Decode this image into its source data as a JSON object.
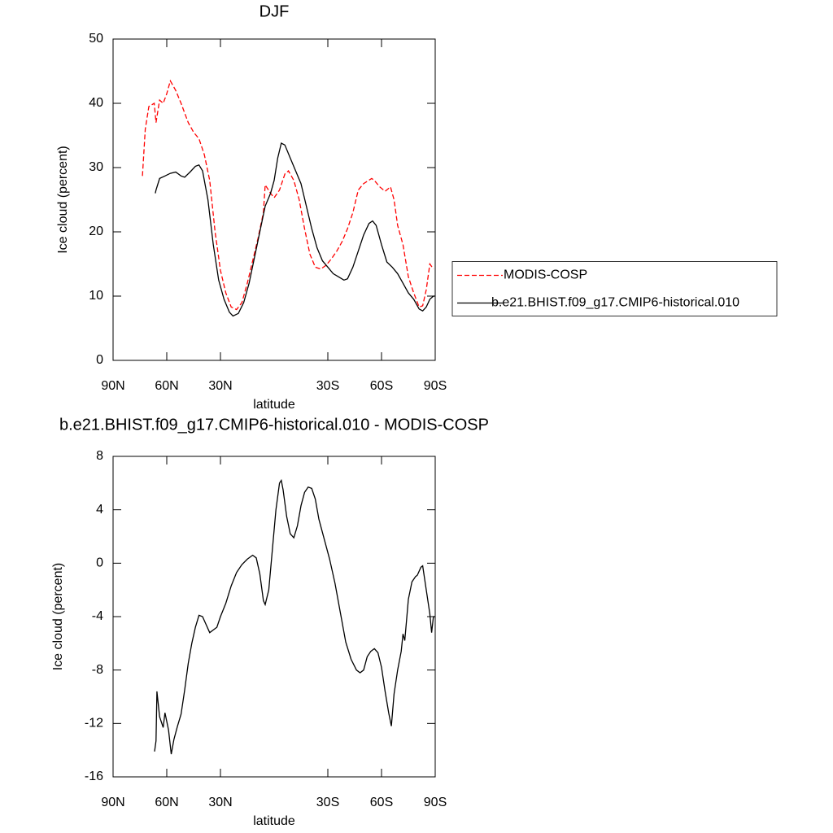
{
  "chart_data": [
    {
      "type": "line",
      "title": "DJF",
      "xlabel": "latitude",
      "ylabel": "Ice cloud (percent)",
      "xlim": [
        90,
        -90
      ],
      "ylim": [
        0,
        50
      ],
      "xticks": [
        {
          "value": 90,
          "label": "90N"
        },
        {
          "value": 60,
          "label": "60N"
        },
        {
          "value": 30,
          "label": "30N"
        },
        {
          "value": -30,
          "label": "30S"
        },
        {
          "value": -60,
          "label": "60S"
        },
        {
          "value": -90,
          "label": "90S"
        }
      ],
      "yticks": [
        0,
        10,
        20,
        30,
        40,
        50
      ],
      "legend": "right",
      "series": [
        {
          "name": "MODIS-COSP",
          "color": "#ff0000",
          "dash": true,
          "x": [
            73.6,
            72,
            70,
            67,
            66,
            64,
            62,
            60,
            58,
            55,
            52,
            48,
            45,
            42,
            39,
            36,
            33,
            30,
            27,
            24,
            21,
            18,
            15,
            12,
            9,
            6,
            5,
            2,
            0,
            -3,
            -6,
            -8,
            -11,
            -14,
            -17,
            -20,
            -23,
            -26,
            -29,
            -32,
            -35,
            -38,
            -41,
            -44,
            -47,
            -50,
            -54.5,
            -56,
            -59,
            -62,
            -65,
            -67,
            -69,
            -72,
            -75,
            -78,
            -81,
            -83,
            -85,
            -87,
            -89
          ],
          "values": [
            28.7,
            36,
            39.5,
            40,
            37,
            40.5,
            40,
            41.5,
            43.5,
            42,
            40,
            37,
            35.5,
            34.5,
            32,
            28,
            20,
            14,
            10.5,
            8.3,
            7.9,
            9,
            12,
            15.5,
            19,
            23,
            27.3,
            26,
            25.3,
            26.5,
            29,
            29.5,
            28,
            25,
            20.5,
            16.5,
            14.5,
            14.2,
            14.8,
            15.8,
            17,
            18.5,
            20.5,
            23,
            26.5,
            27.5,
            28.3,
            28,
            27,
            26.3,
            27,
            25,
            21,
            18,
            13,
            10.5,
            8.3,
            8.5,
            11,
            15,
            14.2
          ]
        },
        {
          "name": "b.e21.BHIST.f09_g17.CMIP6-historical.010",
          "color": "#000000",
          "dash": false,
          "x": [
            66.4,
            66,
            64,
            61,
            58,
            55,
            52,
            50,
            47,
            44,
            42,
            40,
            37,
            34,
            31,
            28,
            25,
            23,
            20,
            17,
            14,
            11,
            8,
            5,
            2,
            0,
            -2,
            -4,
            -6,
            -9,
            -12,
            -15,
            -18,
            -21,
            -24,
            -27,
            -30,
            -33,
            -36,
            -39,
            -41,
            -44,
            -47,
            -50,
            -53,
            -55,
            -57,
            -60,
            -63,
            -66,
            -69,
            -72,
            -75,
            -78,
            -81,
            -83,
            -85,
            -87,
            -89,
            -90
          ],
          "values": [
            26,
            26.5,
            28.3,
            28.7,
            29.1,
            29.3,
            28.7,
            28.5,
            29.3,
            30.2,
            30.4,
            29.5,
            25,
            18,
            12.5,
            9.5,
            7.5,
            6.9,
            7.3,
            9,
            12,
            16,
            20,
            24,
            26,
            28,
            31.5,
            33.8,
            33.5,
            31.5,
            29.5,
            27.5,
            24,
            20.5,
            17.5,
            15.5,
            14.5,
            13.5,
            13,
            12.5,
            12.7,
            14.5,
            17,
            19.5,
            21.3,
            21.7,
            21,
            18,
            15.3,
            14.5,
            13.5,
            12,
            10.5,
            9.5,
            8,
            7.7,
            8.3,
            9.5,
            10,
            10
          ]
        }
      ]
    },
    {
      "type": "line",
      "title": "b.e21.BHIST.f09_g17.CMIP6-historical.010 - MODIS-COSP",
      "xlabel": "latitude",
      "ylabel": "Ice cloud (percent)",
      "xlim": [
        90,
        -90
      ],
      "ylim": [
        -16,
        8
      ],
      "xticks": [
        {
          "value": 90,
          "label": "90N"
        },
        {
          "value": 60,
          "label": "60N"
        },
        {
          "value": 30,
          "label": "30N"
        },
        {
          "value": -30,
          "label": "30S"
        },
        {
          "value": -60,
          "label": "60S"
        },
        {
          "value": -90,
          "label": "90S"
        }
      ],
      "yticks": [
        -16,
        -12,
        -8,
        -4,
        0,
        4,
        8
      ],
      "series": [
        {
          "color": "#000000",
          "dash": false,
          "x": [
            66.8,
            66,
            65.5,
            64,
            62,
            61,
            59,
            57.5,
            56,
            54,
            52,
            50,
            48,
            46,
            44,
            42,
            40,
            38,
            36,
            34,
            32,
            30,
            27,
            24,
            21,
            18,
            15,
            12,
            10,
            8,
            6,
            5,
            3,
            1,
            -1,
            -3,
            -4,
            -5,
            -7,
            -9,
            -11,
            -13,
            -15,
            -17,
            -19,
            -21,
            -23,
            -25,
            -28,
            -31,
            -34,
            -37,
            -40,
            -43,
            -46,
            -48,
            -50,
            -52,
            -54,
            -56,
            -58,
            -60,
            -62,
            -64,
            -65.5,
            -67,
            -69,
            -71,
            -72,
            -73,
            -75,
            -77,
            -79,
            -80,
            -82,
            -83,
            -85,
            -87,
            -88,
            -89,
            -90
          ],
          "values": [
            -14.1,
            -13.3,
            -9.6,
            -11.5,
            -12.3,
            -11.2,
            -12.5,
            -14.3,
            -13.2,
            -12.2,
            -11.3,
            -9.5,
            -7.5,
            -6,
            -4.8,
            -3.9,
            -4,
            -4.6,
            -5.2,
            -5,
            -4.8,
            -4,
            -3,
            -1.7,
            -0.7,
            -0.1,
            0.3,
            0.6,
            0.4,
            -0.8,
            -2.8,
            -3.1,
            -2,
            1,
            4,
            6,
            6.2,
            5.5,
            3.5,
            2.2,
            1.9,
            2.8,
            4.3,
            5.3,
            5.7,
            5.6,
            4.8,
            3.3,
            1.8,
            0.3,
            -1.5,
            -3.7,
            -5.9,
            -7.2,
            -8,
            -8.2,
            -8,
            -7,
            -6.6,
            -6.4,
            -6.7,
            -7.8,
            -9.6,
            -11.2,
            -12.2,
            -9.8,
            -8,
            -6.6,
            -5.3,
            -5.8,
            -2.7,
            -1.4,
            -1,
            -0.9,
            -0.3,
            -0.2,
            -2,
            -3.8,
            -5.2,
            -4,
            -4
          ]
        }
      ]
    }
  ]
}
